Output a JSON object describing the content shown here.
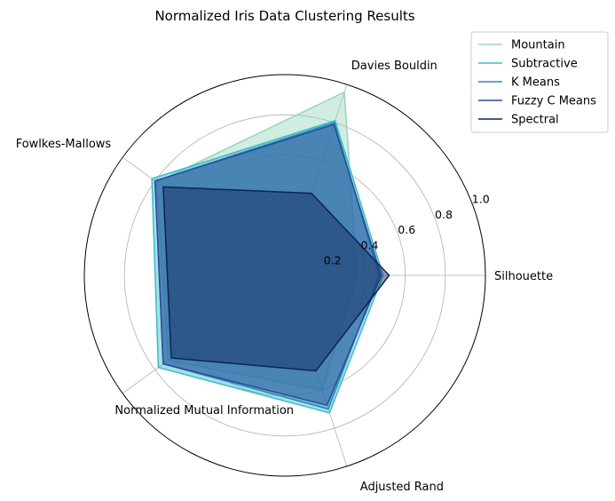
{
  "chart_data": {
    "type": "radar",
    "title": "Normalized Iris Data Clustering Results",
    "axes": [
      "Silhouette",
      "Davies Bouldin",
      "Fowlkes-Mallows",
      "Normalized Mutual Information",
      "Adjusted Rand"
    ],
    "rlim": [
      0,
      1
    ],
    "rticks": [
      0.2,
      0.4,
      0.6,
      0.8,
      1.0
    ],
    "rtick_labels": [
      "0.2",
      "0.4",
      "0.6",
      "0.8",
      "1.0"
    ],
    "grid": true,
    "legend_position": "top-right",
    "series": [
      {
        "name": "Mountain",
        "color": "#98d5bc",
        "values": [
          0.36,
          0.96,
          0.79,
          0.72,
          0.6
        ]
      },
      {
        "name": "Subtractive",
        "color": "#3bbccc",
        "values": [
          0.49,
          0.81,
          0.82,
          0.78,
          0.72
        ]
      },
      {
        "name": "K Means",
        "color": "#2b87b5",
        "values": [
          0.47,
          0.8,
          0.8,
          0.75,
          0.7
        ]
      },
      {
        "name": "Fuzzy C Means",
        "color": "#2b4b9b",
        "values": [
          0.48,
          0.79,
          0.8,
          0.75,
          0.68
        ]
      },
      {
        "name": "Spectral",
        "color": "#0d2358",
        "values": [
          0.52,
          0.43,
          0.75,
          0.7,
          0.5
        ]
      }
    ]
  }
}
